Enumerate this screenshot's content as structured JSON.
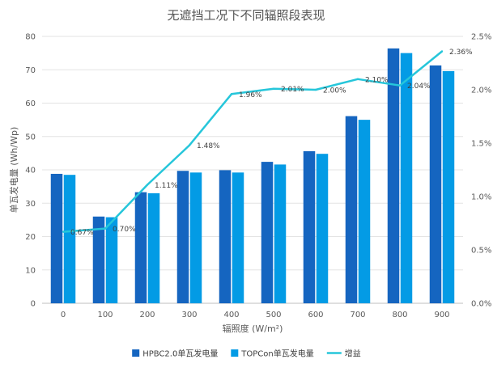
{
  "chart_data": {
    "type": "bar",
    "title": "无遮挡工况下不同辐照段表现",
    "xlabel": "辐照度 (W/m²)",
    "ylabel": "单瓦发电量 (Wh/Wp)",
    "categories": [
      "0",
      "100",
      "200",
      "300",
      "400",
      "500",
      "600",
      "700",
      "800",
      "900"
    ],
    "ylim": [
      0,
      80
    ],
    "y_ticks": [
      "0",
      "10",
      "20",
      "30",
      "40",
      "50",
      "60",
      "70",
      "80"
    ],
    "y2lim": [
      0,
      2.5
    ],
    "y2_ticks": [
      "0.0%",
      "0.5%",
      "1.0%",
      "1.5%",
      "2.0%",
      "2.5%"
    ],
    "series": [
      {
        "name": "HPBC2.0单瓦发电量",
        "type": "bar",
        "color": "#1565C0",
        "values": [
          38.8,
          26.0,
          33.3,
          39.7,
          39.9,
          42.4,
          45.6,
          56.1,
          76.4,
          71.3
        ]
      },
      {
        "name": "TOPCon单瓦发电量",
        "type": "bar",
        "color": "#039BE5",
        "values": [
          38.5,
          25.8,
          33.0,
          39.2,
          39.2,
          41.6,
          44.8,
          55.0,
          75.0,
          69.6
        ]
      },
      {
        "name": "增益",
        "type": "line",
        "axis": "right",
        "color": "#26C6DA",
        "values": [
          0.67,
          0.7,
          1.11,
          1.48,
          1.96,
          2.01,
          2.0,
          2.1,
          2.04,
          2.36
        ],
        "labels": [
          "0.67%",
          "0.70%",
          "1.11%",
          "1.48%",
          "1.96%",
          "2.01%",
          "2.00%",
          "2.10%",
          "2.04%",
          "2.36%"
        ]
      }
    ],
    "grid": true,
    "legend_position": "bottom"
  }
}
